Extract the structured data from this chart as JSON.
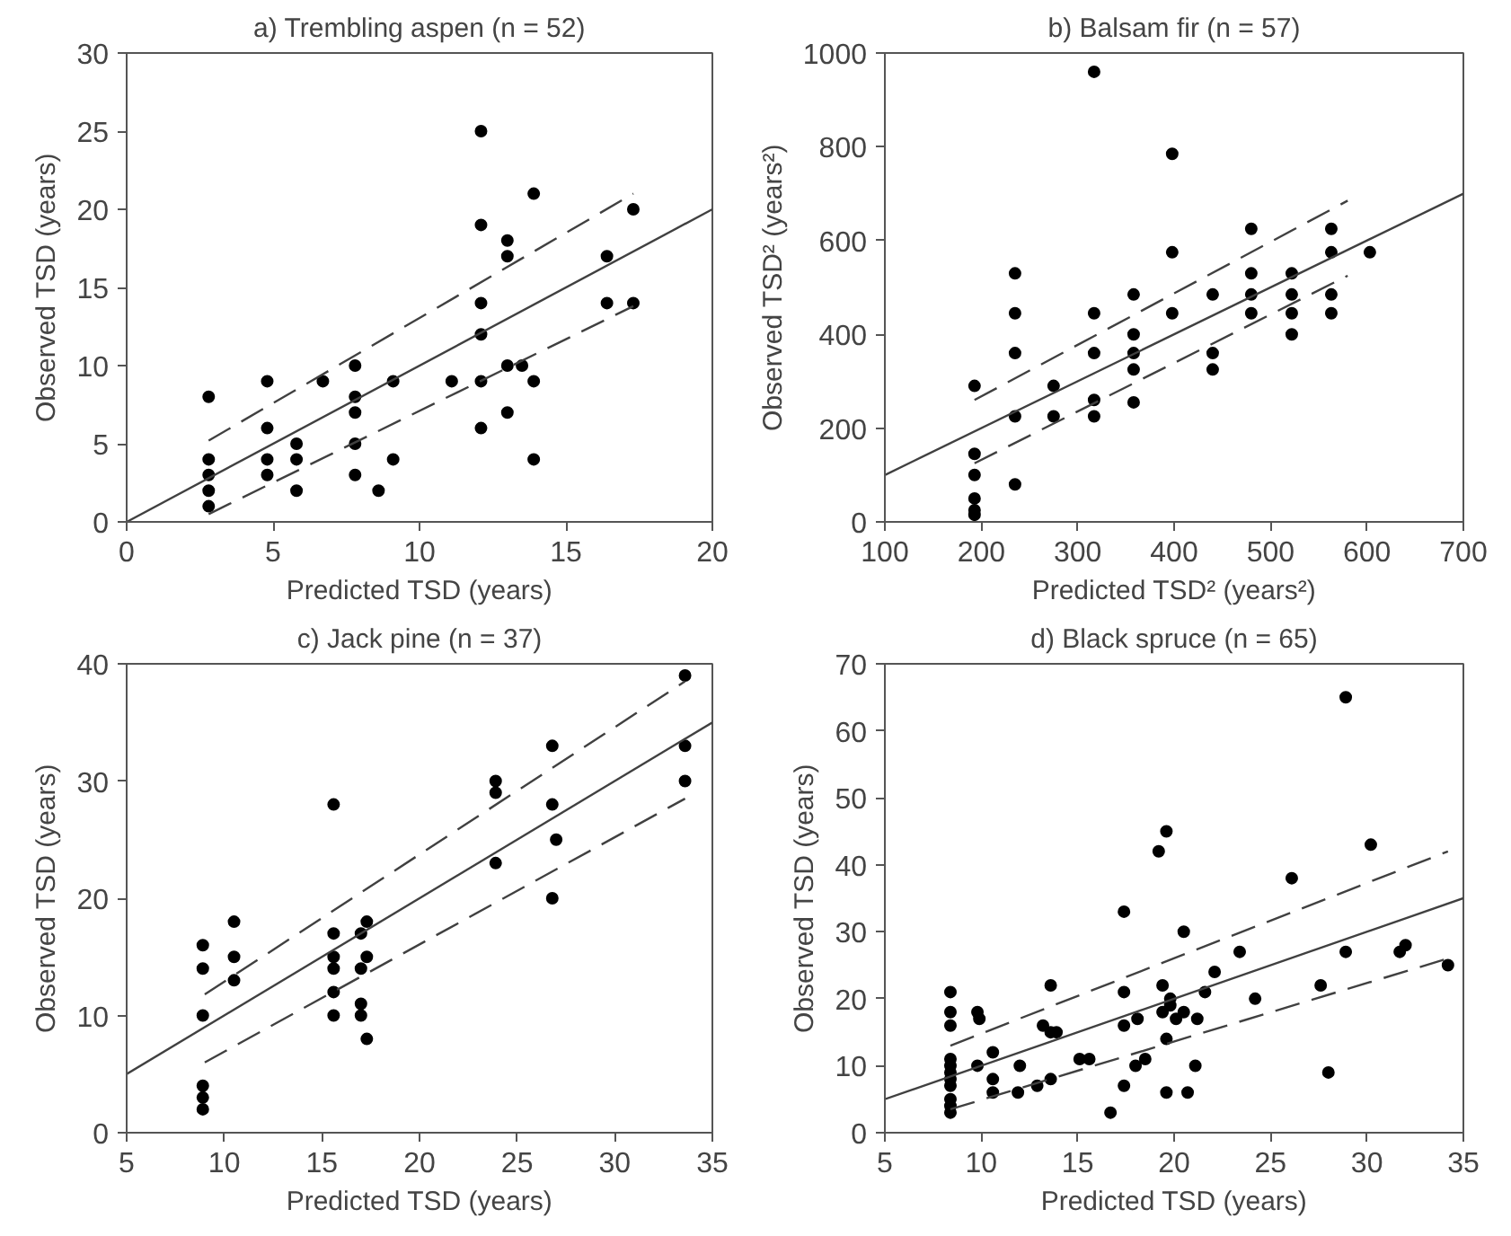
{
  "chart_data": [
    {
      "type": "scatter",
      "title": "a) Trembling aspen (n = 52)",
      "xlabel": "Predicted TSD (years)",
      "ylabel": "Observed TSD (years)",
      "xlim": [
        0,
        20
      ],
      "ylim": [
        0,
        30
      ],
      "xticks": [
        0,
        5,
        10,
        15,
        20
      ],
      "yticks": [
        0,
        5,
        10,
        15,
        20,
        25,
        30
      ],
      "series": [
        {
          "marker": "circle",
          "color": "#000000",
          "x": [
            2.8,
            2.8,
            2.8,
            2.8,
            2.8,
            4.8,
            4.8,
            4.8,
            4.8,
            5.8,
            5.8,
            5.8,
            6.7,
            7.8,
            7.8,
            7.8,
            7.8,
            7.8,
            8.6,
            9.1,
            9.1,
            11.1,
            12.1,
            12.1,
            12.1,
            12.1,
            12.1,
            12.1,
            13.0,
            13.0,
            13.0,
            13.0,
            13.5,
            13.9,
            13.9,
            13.9,
            16.4,
            16.4,
            17.3,
            17.3
          ],
          "values": [
            8,
            4,
            3,
            2,
            1,
            9,
            6,
            4,
            3,
            5,
            4,
            2,
            9,
            10,
            8,
            7,
            5,
            3,
            2,
            9,
            4,
            9,
            25,
            19,
            14,
            12,
            9,
            6,
            18,
            17,
            10,
            7,
            10,
            21,
            9,
            4,
            17,
            14,
            20,
            14
          ]
        },
        {
          "type": "line",
          "color": "#404040",
          "line_style": "solid",
          "x": [
            0,
            20
          ],
          "values": [
            0,
            20
          ]
        },
        {
          "type": "line",
          "color": "#404040",
          "line_style": "dashed",
          "x": [
            2.8,
            17.3
          ],
          "values": [
            5.2,
            21
          ]
        },
        {
          "type": "line",
          "color": "#404040",
          "line_style": "dashed",
          "x": [
            2.8,
            17.3
          ],
          "values": [
            0.5,
            13.8
          ]
        }
      ]
    },
    {
      "type": "scatter",
      "title": "b) Balsam fir (n = 57)",
      "xlabel": "Predicted TSD² (years²)",
      "ylabel": "Observed TSD² (years²)",
      "xlim": [
        100,
        700
      ],
      "ylim": [
        0,
        1000
      ],
      "xticks": [
        100,
        200,
        300,
        400,
        500,
        600,
        700
      ],
      "yticks": [
        0,
        200,
        400,
        600,
        800,
        1000
      ],
      "series": [
        {
          "marker": "circle",
          "color": "#000000",
          "x": [
            193,
            193,
            193,
            193,
            193,
            193,
            235,
            235,
            235,
            235,
            235,
            275,
            275,
            317,
            317,
            317,
            317,
            317,
            358,
            358,
            358,
            358,
            358,
            398,
            398,
            398,
            440,
            440,
            440,
            480,
            480,
            480,
            480,
            522,
            522,
            522,
            522,
            563,
            563,
            563,
            563,
            603
          ],
          "values": [
            290,
            145,
            100,
            50,
            25,
            15,
            530,
            445,
            360,
            225,
            80,
            290,
            225,
            960,
            445,
            360,
            260,
            225,
            485,
            400,
            360,
            325,
            255,
            785,
            575,
            445,
            485,
            360,
            325,
            625,
            530,
            485,
            445,
            530,
            485,
            445,
            400,
            625,
            575,
            485,
            445,
            575
          ]
        },
        {
          "type": "line",
          "color": "#404040",
          "line_style": "solid",
          "x": [
            100,
            700
          ],
          "values": [
            100,
            700
          ]
        },
        {
          "type": "line",
          "color": "#404040",
          "line_style": "dashed",
          "x": [
            193,
            580
          ],
          "values": [
            260,
            685
          ]
        },
        {
          "type": "line",
          "color": "#404040",
          "line_style": "dashed",
          "x": [
            193,
            580
          ],
          "values": [
            125,
            525
          ]
        }
      ]
    },
    {
      "type": "scatter",
      "title": "c) Jack pine (n = 37)",
      "xlabel": "Predicted TSD (years)",
      "ylabel": "Observed TSD (years)",
      "xlim": [
        5,
        35
      ],
      "ylim": [
        0,
        40
      ],
      "xticks": [
        5,
        10,
        15,
        20,
        25,
        30,
        35
      ],
      "yticks": [
        0,
        10,
        20,
        30,
        40
      ],
      "series": [
        {
          "marker": "circle",
          "color": "#000000",
          "x": [
            8.9,
            8.9,
            8.9,
            8.9,
            8.9,
            8.9,
            10.5,
            10.5,
            10.5,
            15.6,
            15.6,
            15.6,
            15.6,
            15.6,
            15.6,
            17.0,
            17.0,
            17.0,
            17.0,
            17.3,
            17.3,
            17.3,
            23.9,
            23.9,
            23.9,
            26.8,
            26.8,
            26.8,
            27.0,
            33.6,
            33.6,
            33.6
          ],
          "values": [
            16,
            14,
            10,
            4,
            3,
            2,
            18,
            15,
            13,
            28,
            17,
            15,
            14,
            12,
            10,
            17,
            14,
            11,
            10,
            18,
            15,
            8,
            30,
            29,
            23,
            33,
            28,
            20,
            25,
            39,
            33,
            30
          ]
        },
        {
          "type": "line",
          "color": "#404040",
          "line_style": "solid",
          "x": [
            5,
            35
          ],
          "values": [
            5,
            35
          ]
        },
        {
          "type": "line",
          "color": "#404040",
          "line_style": "dashed",
          "x": [
            9,
            33.6
          ],
          "values": [
            11.8,
            38.5
          ]
        },
        {
          "type": "line",
          "color": "#404040",
          "line_style": "dashed",
          "x": [
            9,
            33.6
          ],
          "values": [
            6,
            28.5
          ]
        }
      ]
    },
    {
      "type": "scatter",
      "title": "d) Black spruce (n = 65)",
      "xlabel": "Predicted TSD (years)",
      "ylabel": "Observed TSD (years)",
      "xlim": [
        5,
        35
      ],
      "ylim": [
        0,
        70
      ],
      "xticks": [
        5,
        10,
        15,
        20,
        25,
        30,
        35
      ],
      "yticks": [
        0,
        10,
        20,
        30,
        40,
        50,
        60,
        70
      ],
      "series": [
        {
          "marker": "circle",
          "color": "#000000",
          "x": [
            8.4,
            8.4,
            8.4,
            8.4,
            8.4,
            8.4,
            8.4,
            8.4,
            8.4,
            8.4,
            8.4,
            9.8,
            9.9,
            9.8,
            10.6,
            10.6,
            10.6,
            12.0,
            11.9,
            12.9,
            13.2,
            13.6,
            13.6,
            13.6,
            13.9,
            15.1,
            15.6,
            16.7,
            17.4,
            17.4,
            17.4,
            17.4,
            18.0,
            18.1,
            18.5,
            19.2,
            19.4,
            19.4,
            19.6,
            19.6,
            19.6,
            19.8,
            19.8,
            20.1,
            20.5,
            20.5,
            20.7,
            21.1,
            21.2,
            21.6,
            22.1,
            23.4,
            24.2,
            26.1,
            27.6,
            28.0,
            28.9,
            28.9,
            30.2,
            31.7,
            32.0,
            34.2
          ],
          "values": [
            21,
            18,
            16,
            11,
            10,
            9,
            8,
            7,
            5,
            4,
            3,
            18,
            17,
            10,
            12,
            8,
            6,
            10,
            6,
            7,
            16,
            22,
            15,
            8,
            15,
            11,
            11,
            3,
            33,
            21,
            16,
            7,
            10,
            17,
            11,
            42,
            22,
            18,
            45,
            14,
            6,
            20,
            19,
            17,
            30,
            18,
            6,
            10,
            17,
            21,
            24,
            27,
            20,
            38,
            22,
            9,
            65,
            27,
            43,
            27,
            28,
            25
          ]
        },
        {
          "type": "line",
          "color": "#404040",
          "line_style": "solid",
          "x": [
            5,
            35
          ],
          "values": [
            5,
            35
          ]
        },
        {
          "type": "line",
          "color": "#404040",
          "line_style": "dashed",
          "x": [
            8.4,
            34.2
          ],
          "values": [
            13,
            42
          ]
        },
        {
          "type": "line",
          "color": "#404040",
          "line_style": "dashed",
          "x": [
            8.4,
            34.2
          ],
          "values": [
            3.5,
            26
          ]
        }
      ]
    }
  ]
}
